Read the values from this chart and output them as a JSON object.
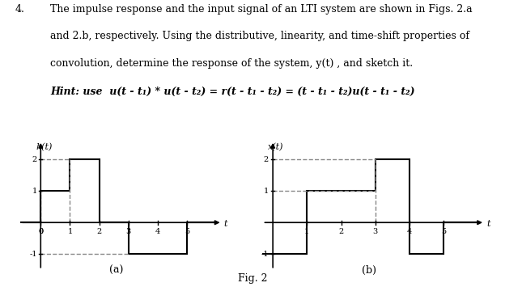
{
  "text_block": {
    "number": "4.",
    "line1": "The impulse response and the input signal of an LTI system are shown in Figs. 2.",
    "line1a": "a",
    "line2": "and 2.",
    "line2b": "b",
    "line2rest": ", respectively. Using the distributive, linearity, and time-shift properties of",
    "line3": "convolution, determine the response of the system, y(t) , and sketch it.",
    "hint": "Hint: use  u(t - t₁) * u(t - t₂) = r(t - t₁ - t₂) = (t - t₁ - t₂)u(t - t₁ - t₂)"
  },
  "fig_label": "Fig. 2",
  "chart_a": {
    "label": "(a)",
    "ylabel": "h(t)",
    "xlabel": "t",
    "xticks": [
      0,
      1,
      2,
      3,
      4,
      5
    ],
    "yticks": [
      -1,
      1,
      2
    ],
    "xlim": [
      -0.7,
      6.2
    ],
    "ylim": [
      -1.5,
      2.6
    ],
    "signal": {
      "t": [
        -1,
        0,
        0,
        1,
        1,
        2,
        2,
        3,
        3,
        5,
        5,
        6
      ],
      "y": [
        0,
        0,
        1,
        1,
        2,
        2,
        0,
        0,
        -1,
        -1,
        0,
        0
      ]
    },
    "dashed_lines": [
      {
        "x1": 0,
        "y1": 0,
        "x2": 0,
        "y2": 1,
        "style": "--",
        "color": "gray"
      },
      {
        "x1": 1,
        "y1": 0,
        "x2": 1,
        "y2": 2,
        "style": "--",
        "color": "gray"
      },
      {
        "x1": 0,
        "y1": 2,
        "x2": 1,
        "y2": 2,
        "style": "--",
        "color": "gray"
      },
      {
        "x1": 0,
        "y1": -1,
        "x2": 3,
        "y2": -1,
        "style": "--",
        "color": "gray"
      }
    ]
  },
  "chart_b": {
    "label": "(b)",
    "ylabel": "x(t)",
    "xlabel": "t",
    "xticks": [
      1,
      2,
      3,
      4,
      5
    ],
    "yticks": [
      -1,
      1,
      2
    ],
    "xlim": [
      -0.3,
      6.2
    ],
    "ylim": [
      -1.5,
      2.6
    ],
    "signal": {
      "t": [
        -0.5,
        1,
        1,
        3,
        3,
        4,
        4,
        5,
        5,
        6
      ],
      "y": [
        -1,
        -1,
        1,
        1,
        2,
        2,
        -1,
        -1,
        0,
        0
      ]
    },
    "dashed_lines": [
      {
        "x1": 0,
        "y1": 1,
        "x2": 3,
        "y2": 1,
        "style": "--",
        "color": "gray"
      },
      {
        "x1": 0,
        "y1": 2,
        "x2": 3,
        "y2": 2,
        "style": "--",
        "color": "gray"
      },
      {
        "x1": 3,
        "y1": 0,
        "x2": 3,
        "y2": 2,
        "style": "--",
        "color": "gray"
      }
    ]
  },
  "background_color": "#ffffff",
  "line_color": "#000000",
  "dashed_color": "#888888",
  "font_family": "serif"
}
